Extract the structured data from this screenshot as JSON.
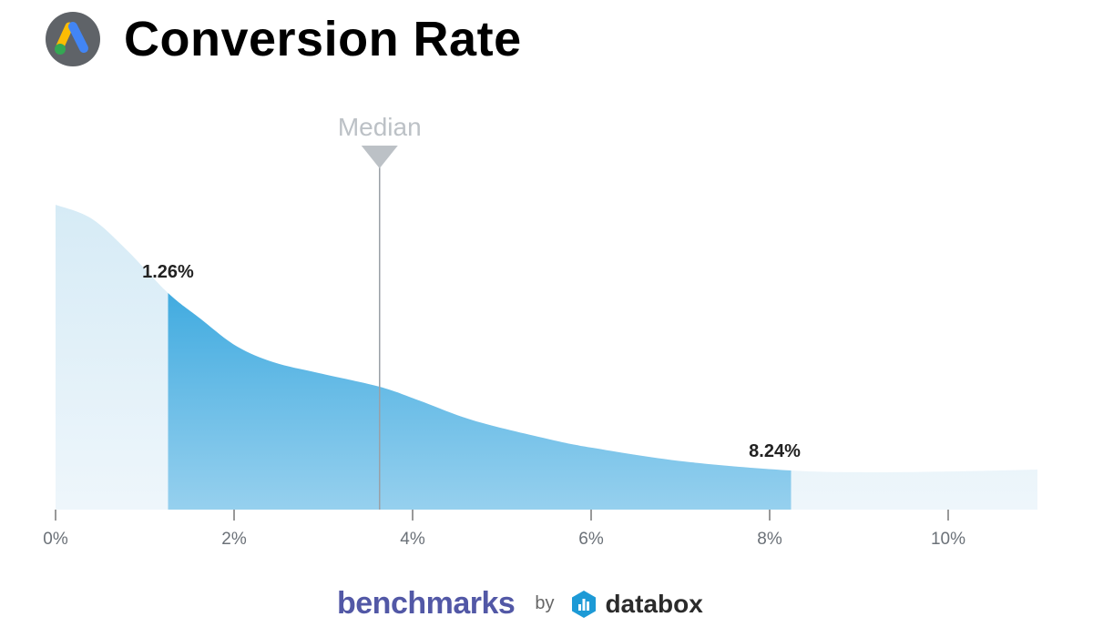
{
  "header": {
    "title": "Conversion Rate",
    "logo_icon": "google-ads-icon"
  },
  "chart_data": {
    "type": "area",
    "title": "Conversion Rate",
    "xlabel": "",
    "ylabel": "",
    "xlim": [
      0,
      11
    ],
    "x_ticks": [
      0,
      2,
      4,
      6,
      8,
      10
    ],
    "x_tick_labels": [
      "0%",
      "2%",
      "4%",
      "6%",
      "8%",
      "10%"
    ],
    "grid": false,
    "density_curve": {
      "x": [
        0,
        0.4,
        0.8,
        1.26,
        1.62,
        2.02,
        2.44,
        2.95,
        3.63,
        4.07,
        4.68,
        5.5,
        6.01,
        7.03,
        8.24,
        9.07,
        10.09,
        11
      ],
      "y": [
        335,
        320,
        285,
        238,
        210,
        180,
        162,
        150,
        135,
        120,
        98,
        78,
        68,
        53,
        43,
        41,
        42,
        44
      ]
    },
    "highlight_range": {
      "from": 1.26,
      "to": 8.24,
      "labels": [
        "1.26%",
        "8.24%"
      ]
    },
    "median": {
      "label": "Median",
      "value": 3.63
    },
    "colors": {
      "outer_fill": "#e3f1f9",
      "range_top": "#229fdb",
      "range_bottom": "#94d0ee",
      "median_line": "#9aa0a6",
      "median_marker": "#bcc1c6"
    }
  },
  "footer": {
    "brand": "benchmarks",
    "by": "by",
    "partner": "databox",
    "partner_icon": "databox-logo-icon"
  }
}
